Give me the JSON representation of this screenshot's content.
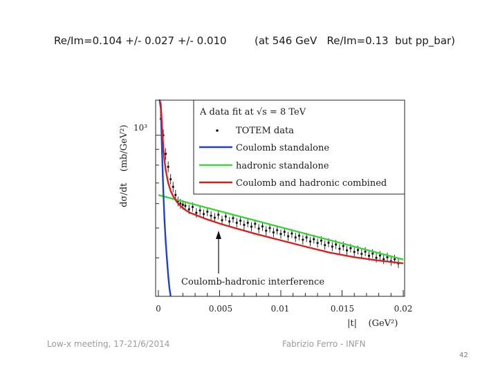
{
  "slide": {
    "headline_left": "Re/Im=0.104 +/- 0.027 +/- 0.010",
    "headline_right": "(at 546 GeV   Re/Im=0.13  but pp_bar)",
    "footer_left": "Low-x meeting, 17-21/6/2014",
    "footer_center": "Fabrizio Ferro - INFN",
    "page_number": "42"
  },
  "chart_data": {
    "type": "scatter",
    "title": "A data fit at √s = 8 TeV",
    "xlabel": "|t|    (GeV²)",
    "ylabel": "dσ/dt    (mb/GeV²)",
    "xlim": [
      0,
      0.02
    ],
    "y_scale": "log",
    "ylim": [
      300,
      1300
    ],
    "x_ticks": [
      0,
      0.005,
      0.01,
      0.015,
      0.02
    ],
    "x_tick_labels": [
      "0",
      "0.005",
      "0.01",
      "0.015",
      "0.02"
    ],
    "y_tick_label": "10³",
    "y_tick_value": 1000,
    "legend_position": "top-right",
    "annotation": "Coulomb-hadronic interference",
    "annotation_x": 0.0042,
    "colors": {
      "data": "#111111",
      "coulomb": "#1f3fd0",
      "hadronic": "#3ed23e",
      "combined": "#d42020",
      "text": "#1a1a1a"
    },
    "series": [
      {
        "name": "TOTEM data",
        "kind": "points",
        "x": [
          0.0002,
          0.0004,
          0.0006,
          0.0008,
          0.001,
          0.0012,
          0.0014,
          0.0016,
          0.0018,
          0.002,
          0.0022,
          0.0025,
          0.0028,
          0.0031,
          0.0034,
          0.0037,
          0.004,
          0.0043,
          0.0046,
          0.0049,
          0.0052,
          0.0055,
          0.0058,
          0.0061,
          0.0064,
          0.0067,
          0.007,
          0.0073,
          0.0076,
          0.0079,
          0.0082,
          0.0085,
          0.0088,
          0.0091,
          0.0094,
          0.0097,
          0.01,
          0.0103,
          0.0106,
          0.0109,
          0.0112,
          0.0115,
          0.0118,
          0.0121,
          0.0124,
          0.0127,
          0.013,
          0.0133,
          0.0136,
          0.0139,
          0.0142,
          0.0145,
          0.0148,
          0.0151,
          0.0154,
          0.0157,
          0.016,
          0.0163,
          0.0166,
          0.0169,
          0.0172,
          0.0175,
          0.0178,
          0.0181,
          0.0184,
          0.0187,
          0.019,
          0.0193,
          0.0196
        ],
        "y": [
          1130,
          1000,
          870,
          790,
          720,
          680,
          640,
          610,
          600,
          595,
          590,
          575,
          585,
          560,
          570,
          555,
          565,
          548,
          540,
          552,
          530,
          545,
          525,
          538,
          520,
          528,
          512,
          520,
          505,
          516,
          498,
          506,
          490,
          500,
          484,
          492,
          478,
          486,
          470,
          480,
          466,
          472,
          458,
          466,
          452,
          460,
          447,
          455,
          440,
          448,
          435,
          442,
          428,
          437,
          423,
          430,
          418,
          424,
          412,
          419,
          406,
          413,
          400,
          407,
          396,
          402,
          390,
          396,
          384
        ],
        "yerr": [
          60,
          45,
          38,
          32,
          28,
          26,
          24,
          22,
          22,
          21,
          21,
          20,
          20,
          20,
          20,
          19,
          19,
          19,
          19,
          19,
          18,
          18,
          18,
          18,
          18,
          18,
          18,
          17,
          17,
          17,
          17,
          17,
          17,
          17,
          17,
          16,
          16,
          16,
          16,
          16,
          16,
          16,
          16,
          16,
          15,
          15,
          15,
          15,
          15,
          15,
          15,
          15,
          15,
          15,
          14,
          14,
          14,
          14,
          14,
          14,
          14,
          14,
          14,
          14,
          14,
          14,
          13,
          13,
          13
        ]
      },
      {
        "name": "Coulomb standalone",
        "kind": "line",
        "x": [
          5e-05,
          0.0001,
          0.0002,
          0.0003,
          0.0004,
          0.0005,
          0.0006,
          0.0007,
          0.0008,
          0.0009,
          0.001
        ],
        "y": [
          1300,
          1300,
          1220,
          880,
          660,
          530,
          450,
          395,
          350,
          320,
          300
        ]
      },
      {
        "name": "hadronic standalone",
        "kind": "line",
        "x": [
          0,
          0.02
        ],
        "y": [
          640,
          395
        ]
      },
      {
        "name": "Coulomb and hadronic combined",
        "kind": "line",
        "x": [
          0.0001,
          0.0002,
          0.0003,
          0.0004,
          0.0005,
          0.0006,
          0.0008,
          0.001,
          0.0012,
          0.0015,
          0.0018,
          0.0022,
          0.0026,
          0.003,
          0.004,
          0.005,
          0.006,
          0.008,
          0.01,
          0.012,
          0.014,
          0.016,
          0.018,
          0.02
        ],
        "y": [
          1300,
          1260,
          1060,
          920,
          830,
          770,
          700,
          660,
          635,
          608,
          590,
          572,
          560,
          552,
          533,
          517,
          503,
          478,
          456,
          435,
          416,
          402,
          392,
          384
        ]
      }
    ]
  }
}
